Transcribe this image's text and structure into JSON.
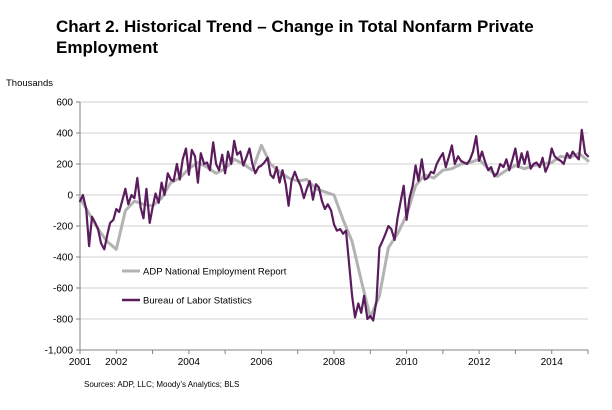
{
  "chart_data": {
    "type": "line",
    "title": "Chart 2. Historical Trend – Change in Total Nonfarm Private Employment",
    "ylabel": "Thousands",
    "xlabel": "",
    "source": "Sources: ADP, LLC; Moody’s Analytics; BLS",
    "ylim": [
      -1000,
      600
    ],
    "xlim": [
      2001.0,
      2015.0
    ],
    "y_ticks": [
      600,
      400,
      200,
      0,
      -200,
      -400,
      -600,
      -800,
      -1000
    ],
    "y_tick_labels": [
      "600",
      "400",
      "200",
      "0",
      "-200",
      "-400",
      "-600",
      "-800",
      "-1,000"
    ],
    "x_ticks": [
      2001,
      2002,
      2004,
      2006,
      2008,
      2010,
      2012,
      2014
    ],
    "x_tick_labels": [
      "2001",
      "2002",
      "2004",
      "2006",
      "2008",
      "2010",
      "2012",
      "2014"
    ],
    "grid": "horizontal",
    "legend_position": "lower-left",
    "series": [
      {
        "name": "ADP National Employment Report",
        "color": "#b3b3b3",
        "x": [
          2001.0,
          2001.25,
          2001.5,
          2001.75,
          2002.0,
          2002.25,
          2002.5,
          2002.75,
          2003.0,
          2003.25,
          2003.5,
          2003.75,
          2004.0,
          2004.25,
          2004.5,
          2004.75,
          2005.0,
          2005.25,
          2005.5,
          2005.75,
          2006.0,
          2006.25,
          2006.5,
          2006.75,
          2007.0,
          2007.25,
          2007.5,
          2007.75,
          2008.0,
          2008.25,
          2008.5,
          2008.75,
          2009.0,
          2009.25,
          2009.5,
          2009.75,
          2010.0,
          2010.25,
          2010.5,
          2010.75,
          2011.0,
          2011.25,
          2011.5,
          2011.75,
          2012.0,
          2012.25,
          2012.5,
          2012.75,
          2013.0,
          2013.25,
          2013.5,
          2013.75,
          2014.0,
          2014.25,
          2014.5,
          2014.75,
          2015.0
        ],
        "y": [
          -20,
          -120,
          -220,
          -300,
          -350,
          -100,
          -40,
          -60,
          -70,
          -20,
          80,
          110,
          170,
          210,
          180,
          140,
          170,
          230,
          200,
          160,
          320,
          200,
          150,
          110,
          90,
          100,
          40,
          20,
          0,
          -160,
          -300,
          -550,
          -790,
          -650,
          -340,
          -250,
          -130,
          60,
          130,
          110,
          160,
          170,
          200,
          210,
          230,
          170,
          120,
          160,
          190,
          170,
          190,
          200,
          210,
          250,
          240,
          270,
          220
        ]
      },
      {
        "name": "Bureau of Labor Statistics",
        "color": "#5b1c5d",
        "x": [
          2001.0,
          2001.08,
          2001.17,
          2001.25,
          2001.33,
          2001.42,
          2001.5,
          2001.58,
          2001.67,
          2001.75,
          2001.83,
          2001.92,
          2002.0,
          2002.08,
          2002.17,
          2002.25,
          2002.33,
          2002.42,
          2002.5,
          2002.58,
          2002.67,
          2002.75,
          2002.83,
          2002.92,
          2003.0,
          2003.08,
          2003.17,
          2003.25,
          2003.33,
          2003.42,
          2003.5,
          2003.58,
          2003.67,
          2003.75,
          2003.83,
          2003.92,
          2004.0,
          2004.08,
          2004.17,
          2004.25,
          2004.33,
          2004.42,
          2004.5,
          2004.58,
          2004.67,
          2004.75,
          2004.83,
          2004.92,
          2005.0,
          2005.08,
          2005.17,
          2005.25,
          2005.33,
          2005.42,
          2005.5,
          2005.58,
          2005.67,
          2005.75,
          2005.83,
          2005.92,
          2006.0,
          2006.08,
          2006.17,
          2006.25,
          2006.33,
          2006.42,
          2006.5,
          2006.58,
          2006.67,
          2006.75,
          2006.83,
          2006.92,
          2007.0,
          2007.08,
          2007.17,
          2007.25,
          2007.33,
          2007.42,
          2007.5,
          2007.58,
          2007.67,
          2007.75,
          2007.83,
          2007.92,
          2008.0,
          2008.08,
          2008.17,
          2008.25,
          2008.33,
          2008.42,
          2008.5,
          2008.58,
          2008.67,
          2008.75,
          2008.83,
          2008.92,
          2009.0,
          2009.08,
          2009.17,
          2009.25,
          2009.33,
          2009.42,
          2009.5,
          2009.58,
          2009.67,
          2009.75,
          2009.83,
          2009.92,
          2010.0,
          2010.08,
          2010.17,
          2010.25,
          2010.33,
          2010.42,
          2010.5,
          2010.58,
          2010.67,
          2010.75,
          2010.83,
          2010.92,
          2011.0,
          2011.08,
          2011.17,
          2011.25,
          2011.33,
          2011.42,
          2011.5,
          2011.58,
          2011.67,
          2011.75,
          2011.83,
          2011.92,
          2012.0,
          2012.08,
          2012.17,
          2012.25,
          2012.33,
          2012.42,
          2012.5,
          2012.58,
          2012.67,
          2012.75,
          2012.83,
          2012.92,
          2013.0,
          2013.08,
          2013.17,
          2013.25,
          2013.33,
          2013.42,
          2013.5,
          2013.58,
          2013.67,
          2013.75,
          2013.83,
          2013.92,
          2014.0,
          2014.08,
          2014.17,
          2014.25,
          2014.33,
          2014.42,
          2014.5,
          2014.58,
          2014.67,
          2014.75,
          2014.83,
          2014.92,
          2015.0
        ],
        "y": [
          -40,
          0,
          -90,
          -330,
          -140,
          -180,
          -220,
          -310,
          -350,
          -260,
          -180,
          -160,
          -90,
          -110,
          -30,
          40,
          -60,
          0,
          -20,
          110,
          -80,
          -150,
          40,
          -180,
          -80,
          10,
          -50,
          80,
          0,
          140,
          100,
          90,
          200,
          100,
          230,
          300,
          130,
          290,
          250,
          80,
          270,
          200,
          210,
          160,
          340,
          200,
          160,
          260,
          140,
          280,
          200,
          350,
          260,
          280,
          190,
          240,
          300,
          200,
          140,
          180,
          190,
          210,
          240,
          130,
          110,
          180,
          80,
          160,
          70,
          -70,
          90,
          150,
          100,
          60,
          -20,
          40,
          90,
          -30,
          70,
          50,
          -40,
          -90,
          -60,
          -100,
          -190,
          -230,
          -220,
          -250,
          -230,
          -450,
          -650,
          -790,
          -700,
          -760,
          -650,
          -800,
          -780,
          -810,
          -680,
          -340,
          -300,
          -250,
          -200,
          -220,
          -290,
          -150,
          -50,
          60,
          -160,
          -20,
          60,
          190,
          90,
          230,
          100,
          110,
          150,
          140,
          200,
          240,
          270,
          180,
          250,
          320,
          200,
          250,
          220,
          210,
          200,
          230,
          280,
          380,
          220,
          280,
          210,
          160,
          180,
          120,
          140,
          200,
          180,
          230,
          160,
          230,
          300,
          180,
          270,
          200,
          280,
          170,
          200,
          210,
          180,
          240,
          150,
          200,
          300,
          250,
          230,
          220,
          200,
          270,
          240,
          280,
          250,
          230,
          420,
          270,
          250
        ]
      }
    ]
  }
}
